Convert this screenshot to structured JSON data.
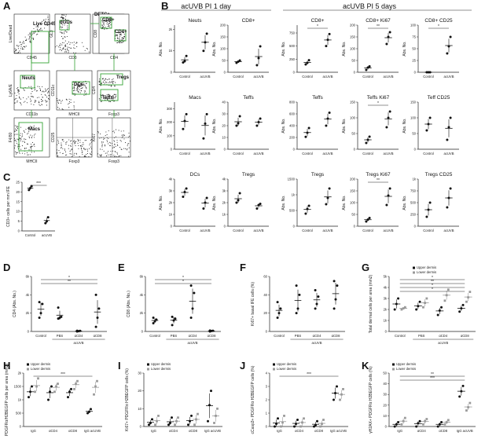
{
  "panel_letters": [
    "A",
    "B",
    "C",
    "D",
    "E",
    "F",
    "G",
    "H",
    "I",
    "J",
    "K"
  ],
  "colors": {
    "axis": "#222222",
    "dot": "#111111",
    "gate": "#36a336",
    "upper_marker": "#111111",
    "lower_marker": "#9a9a9a"
  },
  "panelB_headers": {
    "pi1": "acUVB PI 1 day",
    "pi5": "acUVB PI 5 days"
  },
  "flow_labels": {
    "live": "Live CD45+",
    "detcs": "DETCs",
    "dgds": "dGDs",
    "cd8p": "CD8+",
    "cd4p": "CD4+",
    "neuts": "Neuts",
    "dcs": "DCs",
    "tregs": "Tregs",
    "teffs": "Teffs",
    "macs": "Macs",
    "ax": [
      "Live/Dead",
      "CD45",
      "GL3",
      "CD3",
      "CD8",
      "CD4",
      "Ly6A/E",
      "CD11b",
      "CD11c",
      "MHCII",
      "CD4",
      "Foxp3",
      "F4/80",
      "MHCII",
      "CD25",
      "Foxp3",
      "Ki67",
      "Foxp3"
    ]
  },
  "chart_data": [
    {
      "panel": "B",
      "type": "scatter",
      "title": "Neuts",
      "ylabel": "Abs. No.",
      "categories": [
        "Control",
        "acUVB"
      ],
      "series": [
        {
          "values": [
            [
              460,
              520,
              760
            ],
            [
              1000,
              1400,
              1800
            ]
          ]
        }
      ],
      "ylim": [
        0,
        2200
      ]
    },
    {
      "panel": "B",
      "type": "scatter",
      "title": "CD8+",
      "ylabel": "Abs. No.",
      "categories": [
        "Control",
        "acUVB"
      ],
      "series": [
        {
          "values": [
            [
              40,
              45,
              50
            ],
            [
              30,
              60,
              110
            ]
          ]
        }
      ],
      "ylim": [
        0,
        200
      ]
    },
    {
      "panel": "B",
      "type": "scatter",
      "title": "CD8+",
      "ylabel": "Abs. No.",
      "categories": [
        "Control",
        "acUVB"
      ],
      "annot": "*",
      "series": [
        {
          "values": [
            [
              150,
              180,
              230
            ],
            [
              500,
              620,
              730
            ]
          ]
        }
      ],
      "ylim": [
        0,
        900
      ]
    },
    {
      "panel": "B",
      "type": "scatter",
      "title": "CD8+ Ki67",
      "ylabel": "Abs. No.",
      "categories": [
        "Control",
        "acUVB"
      ],
      "annot": "**",
      "series": [
        {
          "values": [
            [
              10,
              20,
              25
            ],
            [
              120,
              150,
              170
            ]
          ]
        }
      ],
      "ylim": [
        0,
        200
      ]
    },
    {
      "panel": "B",
      "type": "scatter",
      "title": "CD8+ CD25",
      "ylabel": "Abs. No.",
      "categories": [
        "Control",
        "acUVB"
      ],
      "annot": "*",
      "series": [
        {
          "values": [
            [
              0,
              0,
              0
            ],
            [
              40,
              55,
              75
            ]
          ]
        }
      ],
      "ylim": [
        0,
        100
      ]
    },
    {
      "panel": "B",
      "type": "scatter",
      "title": "Macs",
      "ylabel": "Abs. No.",
      "categories": [
        "Control",
        "acUVB"
      ],
      "series": [
        {
          "values": [
            [
              150,
              210,
              260
            ],
            [
              80,
              190,
              260
            ]
          ]
        }
      ],
      "ylim": [
        0,
        350
      ]
    },
    {
      "panel": "B",
      "type": "scatter",
      "title": "Teffs",
      "ylabel": "Abs. No.",
      "categories": [
        "Control",
        "acUVB"
      ],
      "series": [
        {
          "values": [
            [
              20,
              22,
              28
            ],
            [
              20,
              23,
              26
            ]
          ]
        }
      ],
      "ylim": [
        0,
        40
      ]
    },
    {
      "panel": "B",
      "type": "scatter",
      "title": "Teffs",
      "ylabel": "Abs. No.",
      "categories": [
        "Control",
        "acUVB"
      ],
      "series": [
        {
          "values": [
            [
              210,
              280,
              360
            ],
            [
              400,
              520,
              620
            ]
          ]
        }
      ],
      "ylim": [
        0,
        800
      ]
    },
    {
      "panel": "B",
      "type": "scatter",
      "title": "Teffs Ki67",
      "ylabel": "Abs. No.",
      "categories": [
        "Control",
        "acUVB"
      ],
      "annot": "*",
      "series": [
        {
          "values": [
            [
              20,
              30,
              40
            ],
            [
              70,
              100,
              120
            ]
          ]
        }
      ],
      "ylim": [
        0,
        150
      ]
    },
    {
      "panel": "B",
      "type": "scatter",
      "title": "Teff CD25",
      "ylabel": "Abs. No.",
      "categories": [
        "Control",
        "acUVB"
      ],
      "series": [
        {
          "values": [
            [
              60,
              80,
              100
            ],
            [
              30,
              70,
              100
            ]
          ]
        }
      ],
      "ylim": [
        0,
        150
      ]
    },
    {
      "panel": "B",
      "type": "scatter",
      "title": "DCs",
      "ylabel": "Abs. No.",
      "categories": [
        "Control",
        "acUVB"
      ],
      "series": [
        {
          "values": [
            [
              2500,
              2900,
              3200
            ],
            [
              1500,
              2000,
              2400
            ]
          ]
        }
      ],
      "ylim": [
        0,
        4000
      ]
    },
    {
      "panel": "B",
      "type": "scatter",
      "title": "Tregs",
      "ylabel": "Abs. No.",
      "categories": [
        "Control",
        "acUVB"
      ],
      "series": [
        {
          "values": [
            [
              2000,
              2200,
              2800
            ],
            [
              1500,
              1800,
              1900
            ]
          ]
        }
      ],
      "ylim": [
        0,
        4000
      ]
    },
    {
      "panel": "B",
      "type": "scatter",
      "title": "Tregs",
      "ylabel": "Abs. No.",
      "categories": [
        "Control",
        "acUVB"
      ],
      "series": [
        {
          "values": [
            [
              400,
              550,
              650
            ],
            [
              700,
              900,
              1200
            ]
          ]
        }
      ],
      "ylim": [
        0,
        1500
      ]
    },
    {
      "panel": "B",
      "type": "scatter",
      "title": "Tregs Ki67",
      "ylabel": "Abs. No.",
      "categories": [
        "Control",
        "acUVB"
      ],
      "annot": "**",
      "series": [
        {
          "values": [
            [
              20,
              28,
              35
            ],
            [
              90,
              130,
              160
            ]
          ]
        }
      ],
      "ylim": [
        0,
        200
      ]
    },
    {
      "panel": "B",
      "type": "scatter",
      "title": "Tregs CD25",
      "ylabel": "Abs. No.",
      "categories": [
        "Control",
        "acUVB"
      ],
      "series": [
        {
          "values": [
            [
              200,
              350,
              500
            ],
            [
              400,
              600,
              800
            ]
          ]
        }
      ],
      "ylim": [
        0,
        1000
      ]
    },
    {
      "panel": "C",
      "type": "scatter",
      "ylabel": "CD3+ cells per mm IFE",
      "categories": [
        "Control",
        "acUVB"
      ],
      "annot": "***",
      "series": [
        {
          "values": [
            [
              21,
              22,
              23
            ],
            [
              4,
              5,
              7
            ]
          ]
        }
      ],
      "ylim": [
        0,
        25
      ]
    },
    {
      "panel": "D",
      "type": "scatter",
      "ylabel": "CD4 (Abs. No.)",
      "categories": [
        "Control",
        "PBS",
        "αCD4",
        "αCD8"
      ],
      "group_label": "acUVB",
      "annot": [
        "*",
        "**"
      ],
      "series": [
        {
          "values": [
            [
              1500,
              2000,
              3000,
              3200
            ],
            [
              1400,
              1500,
              1600,
              2600
            ],
            [
              0,
              30,
              60,
              80
            ],
            [
              500,
              1500,
              2500,
              4000
            ]
          ]
        }
      ],
      "ylim": [
        0,
        6000
      ]
    },
    {
      "panel": "E",
      "type": "scatter",
      "ylabel": "CD8 (Abs. No.)",
      "categories": [
        "Control",
        "PBS",
        "αCD4",
        "αCD8"
      ],
      "group_label": "acUVB",
      "annot": [
        "*",
        "*"
      ],
      "series": [
        {
          "values": [
            [
              900,
              1100,
              1300,
              1500
            ],
            [
              700,
              1200,
              1400,
              1600
            ],
            [
              1500,
              2500,
              4200,
              5000
            ],
            [
              0,
              50,
              80,
              100
            ]
          ]
        }
      ],
      "ylim": [
        0,
        6000
      ]
    },
    {
      "panel": "F",
      "type": "scatter",
      "ylabel": "Ki67+ basal IFE cells (%)",
      "categories": [
        "Control",
        "PBS",
        "αCD4",
        "αCD8"
      ],
      "group_label": "acUVB",
      "series": [
        {
          "values": [
            [
              15,
              20,
              25,
              32
            ],
            [
              20,
              25,
              40,
              50
            ],
            [
              25,
              30,
              38,
              45
            ],
            [
              25,
              35,
              50,
              55
            ]
          ]
        }
      ],
      "ylim": [
        0,
        60
      ]
    },
    {
      "panel": "G",
      "type": "scatter",
      "ylabel": "Total dermal cells per area (mm2)",
      "categories": [
        "Control",
        "PBS",
        "αCD4",
        "αCD8"
      ],
      "group_label": "acUVB",
      "legend": [
        "Upper dermis",
        "Lower dermis"
      ],
      "annot": [
        "*",
        "**",
        "*",
        "*"
      ],
      "series": [
        {
          "name": "Upper dermis",
          "values": [
            [
              2000,
              2500,
              3000
            ],
            [
              2000,
              2300,
              2700
            ],
            [
              1500,
              1900,
              2200
            ],
            [
              1800,
              2100,
              2400
            ]
          ]
        },
        {
          "name": "Lower dermis",
          "values": [
            [
              2000,
              2100,
              2200
            ],
            [
              2200,
              2600,
              3000
            ],
            [
              2800,
              3300,
              3800
            ],
            [
              2700,
              3100,
              3600
            ]
          ]
        }
      ],
      "ylim": [
        0,
        5000
      ]
    },
    {
      "panel": "H",
      "type": "scatter",
      "ylabel": "PDGFRα/H2BEGFP cells per area (mm2)",
      "categories": [
        "IgG",
        "αCD4",
        "αCD8",
        "IgG acUVB"
      ],
      "legend": [
        "Upper dermis",
        "Lower dermis"
      ],
      "annot": "***",
      "series": [
        {
          "name": "Upper dermis",
          "values": [
            [
              1100,
              1300,
              1500
            ],
            [
              1000,
              1300,
              1500
            ],
            [
              1100,
              1300,
              1400
            ],
            [
              500,
              550,
              650
            ]
          ]
        },
        {
          "name": "Lower dermis",
          "values": [
            [
              1300,
              1500,
              1800
            ],
            [
              1300,
              1500,
              1600
            ],
            [
              1400,
              1600,
              1700
            ],
            [
              1200,
              1500,
              1700
            ]
          ]
        }
      ],
      "ylim": [
        0,
        2000
      ]
    },
    {
      "panel": "I",
      "type": "scatter",
      "ylabel": "Ki67+ PDGFRα H2BEGFP cells (%)",
      "categories": [
        "IgG",
        "αCD4",
        "αCD8",
        "IgG acUVB"
      ],
      "legend": [
        "Upper dermis",
        "Lower dermis"
      ],
      "series": [
        {
          "name": "Upper dermis",
          "values": [
            [
              1,
              2,
              4
            ],
            [
              1,
              2,
              5
            ],
            [
              1,
              3,
              6
            ],
            [
              3,
              12,
              20
            ]
          ]
        },
        {
          "name": "Lower dermis",
          "values": [
            [
              1,
              3,
              6
            ],
            [
              1,
              3,
              5
            ],
            [
              1,
              4,
              7
            ],
            [
              2,
              6,
              10
            ]
          ]
        }
      ],
      "ylim": [
        0,
        30
      ]
    },
    {
      "panel": "J",
      "type": "scatter",
      "ylabel": "cCasp3+ PDGFRα H2BEGFP cells (%)",
      "categories": [
        "IgG",
        "αCD4",
        "αCD8",
        "IgG acUVB"
      ],
      "legend": [
        "Upper dermis",
        "Lower dermis"
      ],
      "annot": "***",
      "series": [
        {
          "name": "Upper dermis",
          "values": [
            [
              0,
              0.2,
              0.6
            ],
            [
              0,
              0.2,
              0.5
            ],
            [
              0,
              0.1,
              0.4
            ],
            [
              2,
              2.5,
              3
            ]
          ]
        },
        {
          "name": "Lower dermis",
          "values": [
            [
              0,
              0.3,
              0.8
            ],
            [
              0,
              0.3,
              0.6
            ],
            [
              0,
              0.2,
              0.5
            ],
            [
              2,
              2.4,
              2.8
            ]
          ]
        }
      ],
      "ylim": [
        0,
        4
      ]
    },
    {
      "panel": "K",
      "type": "scatter",
      "ylabel": "γH2AX+ PDGFRα H2BEGFP cells (%)",
      "categories": [
        "IgG",
        "αCD4",
        "αCD8",
        "IgG acUVB"
      ],
      "legend": [
        "Upper dermis",
        "Lower dermis"
      ],
      "annot": [
        "**",
        "***"
      ],
      "series": [
        {
          "name": "Upper dermis",
          "values": [
            [
              0,
              2,
              4
            ],
            [
              0,
              3,
              5
            ],
            [
              0,
              2,
              4
            ],
            [
              28,
              33,
              38
            ]
          ]
        },
        {
          "name": "Lower dermis",
          "values": [
            [
              2,
              5,
              8
            ],
            [
              2,
              5,
              7
            ],
            [
              2,
              4,
              6
            ],
            [
              15,
              18,
              22
            ]
          ]
        }
      ],
      "ylim": [
        0,
        50
      ]
    }
  ]
}
